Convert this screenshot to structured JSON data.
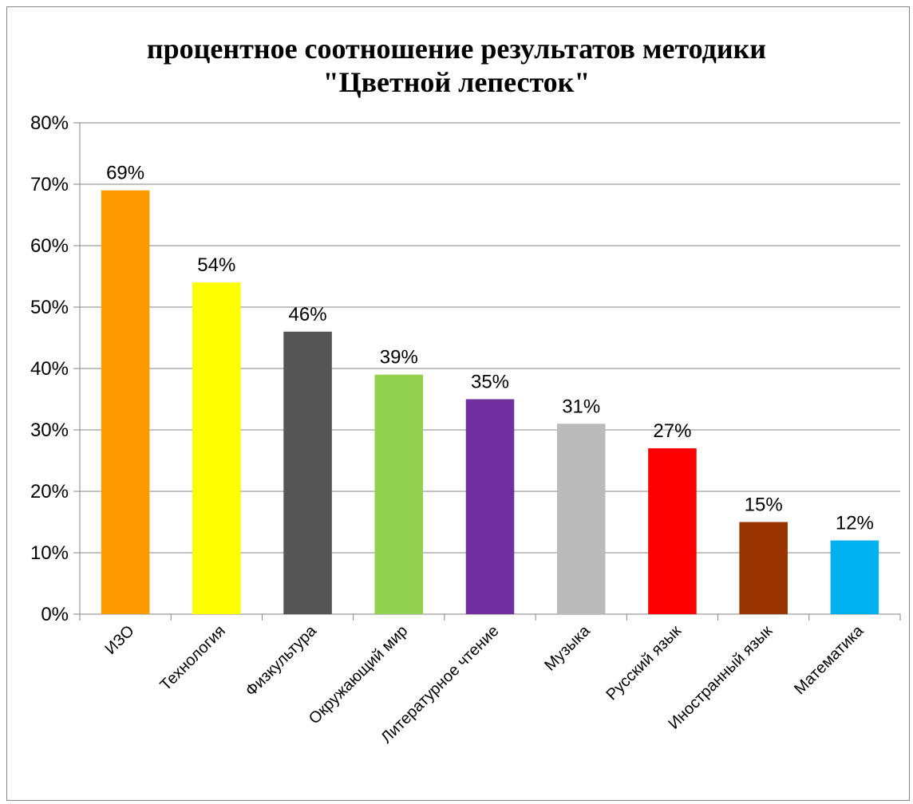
{
  "chart_data": {
    "type": "bar",
    "title_lines": [
      "процентное соотношение результатов методики",
      "\"Цветной лепесток\""
    ],
    "xlabel": "",
    "ylabel": "",
    "ylim": [
      0,
      80
    ],
    "yticks": [
      0,
      10,
      20,
      30,
      40,
      50,
      60,
      70,
      80
    ],
    "ytick_labels": [
      "0%",
      "10%",
      "20%",
      "30%",
      "40%",
      "50%",
      "60%",
      "70%",
      "80%"
    ],
    "grid": true,
    "legend": "none",
    "categories": [
      "ИЗО",
      "Технология",
      "Физкультура",
      "Окружающий мир",
      "Литературное чтение",
      "Музыка",
      "Русский язык",
      "Иностранный язык",
      "Математика"
    ],
    "values": [
      69,
      54,
      46,
      39,
      35,
      31,
      27,
      15,
      12
    ],
    "data_labels": [
      "69%",
      "54%",
      "46%",
      "39%",
      "35%",
      "31%",
      "27%",
      "15%",
      "12%"
    ],
    "colors": [
      "#FF9900",
      "#FFFF00",
      "#555555",
      "#92D050",
      "#7030A0",
      "#BBBBBB",
      "#FF0000",
      "#993300",
      "#00B0F0"
    ]
  }
}
